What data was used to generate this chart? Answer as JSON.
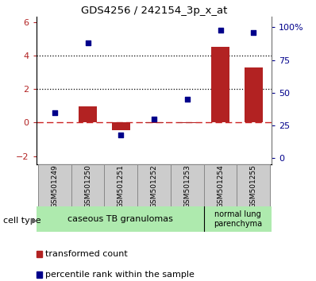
{
  "title": "GDS4256 / 242154_3p_x_at",
  "samples": [
    "GSM501249",
    "GSM501250",
    "GSM501251",
    "GSM501252",
    "GSM501253",
    "GSM501254",
    "GSM501255"
  ],
  "transformed_count": [
    0.0,
    0.95,
    -0.45,
    -0.05,
    -0.05,
    4.5,
    3.3
  ],
  "percentile_rank": [
    35,
    88,
    18,
    30,
    45,
    98,
    96
  ],
  "ylim_left": [
    -2.5,
    6.3
  ],
  "ylim_right": [
    -4.6,
    108
  ],
  "yticks_left": [
    -2,
    0,
    2,
    4,
    6
  ],
  "yticks_right": [
    0,
    25,
    50,
    75,
    100
  ],
  "yticklabels_right": [
    "0",
    "25",
    "50",
    "75",
    "100%"
  ],
  "hlines": [
    2,
    4
  ],
  "bar_color": "#b22222",
  "scatter_color": "#00008b",
  "dashed_line_color": "#cc2222",
  "group1_label": "caseous TB granulomas",
  "group2_label": "normal lung\nparenchyma",
  "group1_color": "#aeeaae",
  "group2_color": "#aeeaae",
  "cell_type_label": "cell type",
  "legend1_label": "transformed count",
  "legend2_label": "percentile rank within the sample",
  "bar_width": 0.55
}
